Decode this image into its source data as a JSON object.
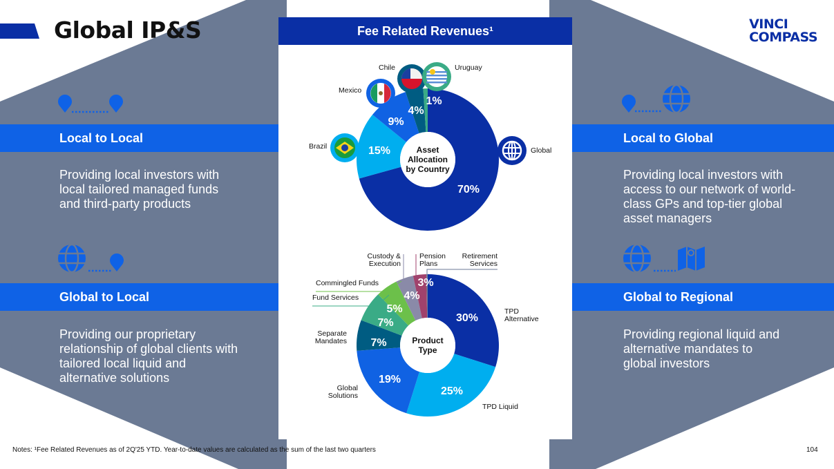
{
  "slide": {
    "title": "Global IP&S",
    "logo": {
      "line1": "VINCI",
      "line2": "COMPASS"
    },
    "page_number": "104",
    "notes": "Notes: ¹Fee Related Revenues as of 2Q'25 YTD. Year-to-date values are calculated as the sum of the last two quarters"
  },
  "colors": {
    "brand_dark": "#0a2fa5",
    "band_blue": "#0f62e6",
    "panel_gray": "#6b7a94"
  },
  "panels": [
    {
      "title": "Local to Local",
      "description": "Providing local investors with local tailored managed funds and third-party products",
      "icons": [
        "map-pin-icon",
        "map-pin-icon"
      ]
    },
    {
      "title": "Local to Global",
      "description": "Providing local investors with access to our network of world-class GPs and top-tier global asset managers",
      "icons": [
        "map-pin-icon",
        "globe-icon"
      ]
    },
    {
      "title": "Global to Local",
      "description": "Providing our proprietary relationship of global clients with tailored local liquid and alternative solutions",
      "icons": [
        "globe-icon",
        "map-pin-icon"
      ]
    },
    {
      "title": "Global to Regional",
      "description": "Providing regional liquid and alternative mandates to global investors",
      "icons": [
        "globe-icon",
        "map-icon"
      ]
    }
  ],
  "card": {
    "title": "Fee Related Revenues¹"
  },
  "chart_data": [
    {
      "type": "pie",
      "variant": "donut",
      "center_label": "Asset Allocation by Country",
      "center_lines": [
        "Asset",
        "Allocation",
        "by Country"
      ],
      "categories": [
        "Global",
        "Brazil",
        "Mexico",
        "Chile",
        "Uruguay"
      ],
      "values": [
        70,
        15,
        9,
        4,
        1
      ],
      "labels": [
        "70%",
        "15%",
        "9%",
        "4%",
        "1%"
      ],
      "colors": [
        "#0a2fa5",
        "#00aeef",
        "#1062e3",
        "#005c82",
        "#3aab86"
      ],
      "icons": [
        "globe-icon",
        "brazil-flag-icon",
        "mexico-flag-icon",
        "chile-flag-icon",
        "uruguay-flag-icon"
      ]
    },
    {
      "type": "pie",
      "variant": "donut",
      "center_label": "Product Type",
      "center_lines": [
        "Product",
        "Type"
      ],
      "categories": [
        "TPD Alternative",
        "TPD Liquid",
        "Global Solutions",
        "Separate Mandates",
        "Fund Services",
        "Commingled Funds",
        "Custody & Execution",
        "Pension Plans",
        "Retirement Services"
      ],
      "values": [
        30,
        25,
        19,
        7,
        7,
        5,
        4,
        3,
        0.3
      ],
      "labels": [
        "30%",
        "25%",
        "19%",
        "7%",
        "7%",
        "5%",
        "4%",
        "3%",
        ""
      ],
      "colors": [
        "#0a2fa5",
        "#00aeef",
        "#1062e3",
        "#005c82",
        "#3aab86",
        "#6cc04a",
        "#8a8aa8",
        "#a0426c",
        "#6b7a94"
      ]
    }
  ]
}
